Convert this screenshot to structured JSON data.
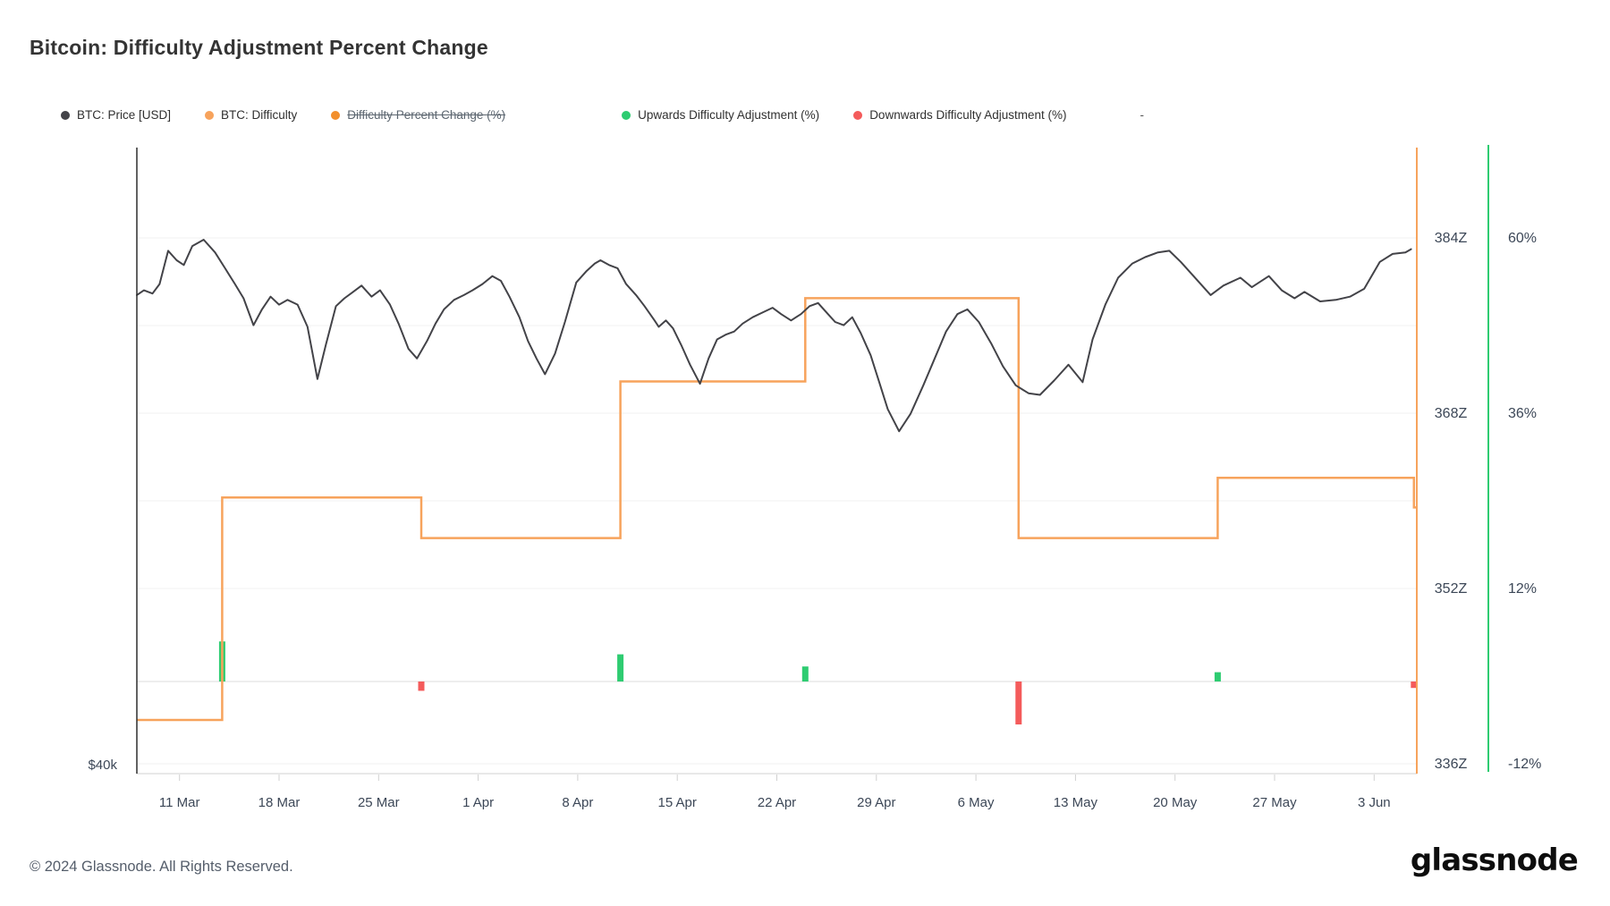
{
  "header": {
    "title": "Bitcoin: Difficulty Adjustment Percent Change"
  },
  "legend": {
    "items": [
      {
        "label": "BTC: Price [USD]",
        "color": "#434348",
        "disabled": false
      },
      {
        "label": "BTC: Difficulty",
        "color": "#f7a35c",
        "disabled": false
      },
      {
        "label": "Difficulty Percent Change (%)",
        "color": "#f28f2d",
        "disabled": true
      },
      {
        "label": "Upwards Difficulty Adjustment (%)",
        "color": "#2ecc71",
        "disabled": false
      },
      {
        "label": "Downwards Difficulty Adjustment (%)",
        "color": "#f45b5b",
        "disabled": false
      },
      {
        "label": "-",
        "color": null,
        "disabled": false
      }
    ]
  },
  "axes": {
    "price_axis_label": "$40k",
    "difficulty_tick_values": [
      384,
      368,
      352,
      336
    ],
    "difficulty_tick_suffix": "Z",
    "percent_tick_values": [
      60,
      36,
      12,
      -12
    ],
    "percent_tick_suffix": "%",
    "x_ticks": [
      {
        "day": 3,
        "label": "11 Mar"
      },
      {
        "day": 10,
        "label": "18 Mar"
      },
      {
        "day": 17,
        "label": "25 Mar"
      },
      {
        "day": 24,
        "label": "1 Apr"
      },
      {
        "day": 31,
        "label": "8 Apr"
      },
      {
        "day": 38,
        "label": "15 Apr"
      },
      {
        "day": 45,
        "label": "22 Apr"
      },
      {
        "day": 52,
        "label": "29 Apr"
      },
      {
        "day": 59,
        "label": "6 May"
      },
      {
        "day": 66,
        "label": "13 May"
      },
      {
        "day": 73,
        "label": "20 May"
      },
      {
        "day": 80,
        "label": "27 May"
      },
      {
        "day": 87,
        "label": "3 Jun"
      }
    ]
  },
  "chart_data": {
    "type": "mixed",
    "title": "Bitcoin: Difficulty Adjustment Percent Change",
    "x_unit": "days since 8 Mar 2024",
    "x_range_days": [
      0,
      90
    ],
    "legend_position": "top",
    "grid": "horizontal-faint",
    "y_axes": {
      "price_usd": {
        "visible_label": "$40k",
        "scale": "auto"
      },
      "difficulty_z": {
        "ticks": [
          "384Z",
          "368Z",
          "352Z",
          "336Z"
        ]
      },
      "percent": {
        "ticks": [
          "60%",
          "36%",
          "12%",
          "-12%"
        ],
        "zero_baseline": true
      }
    },
    "series": [
      {
        "name": "BTC: Price [USD]",
        "type": "line",
        "color": "#434348",
        "unit": "USD",
        "points": [
          [
            0,
            69600
          ],
          [
            0.5,
            69900
          ],
          [
            1.1,
            69700
          ],
          [
            1.6,
            70300
          ],
          [
            2.2,
            72400
          ],
          [
            2.8,
            71800
          ],
          [
            3.3,
            71500
          ],
          [
            3.9,
            72700
          ],
          [
            4.7,
            73100
          ],
          [
            5.5,
            72300
          ],
          [
            6.2,
            71300
          ],
          [
            6.9,
            70300
          ],
          [
            7.5,
            69400
          ],
          [
            8.2,
            67700
          ],
          [
            8.8,
            68700
          ],
          [
            9.4,
            69500
          ],
          [
            10,
            69000
          ],
          [
            10.6,
            69300
          ],
          [
            11.3,
            69000
          ],
          [
            12,
            67600
          ],
          [
            12.7,
            64300
          ],
          [
            13.3,
            66500
          ],
          [
            14,
            68900
          ],
          [
            14.6,
            69400
          ],
          [
            15.2,
            69800
          ],
          [
            15.8,
            70200
          ],
          [
            16.5,
            69500
          ],
          [
            17.1,
            69900
          ],
          [
            17.8,
            69000
          ],
          [
            18.4,
            67800
          ],
          [
            19.1,
            66200
          ],
          [
            19.7,
            65600
          ],
          [
            20.4,
            66700
          ],
          [
            21,
            67800
          ],
          [
            21.6,
            68700
          ],
          [
            22.3,
            69300
          ],
          [
            23,
            69600
          ],
          [
            23.6,
            69900
          ],
          [
            24.3,
            70300
          ],
          [
            25,
            70800
          ],
          [
            25.6,
            70500
          ],
          [
            26.2,
            69500
          ],
          [
            26.9,
            68200
          ],
          [
            27.5,
            66700
          ],
          [
            28.1,
            65600
          ],
          [
            28.7,
            64600
          ],
          [
            29.4,
            65900
          ],
          [
            30.1,
            67900
          ],
          [
            30.9,
            70400
          ],
          [
            31.6,
            71100
          ],
          [
            32.2,
            71600
          ],
          [
            32.6,
            71800
          ],
          [
            33.2,
            71500
          ],
          [
            33.8,
            71300
          ],
          [
            34.4,
            70300
          ],
          [
            35.1,
            69600
          ],
          [
            35.7,
            68900
          ],
          [
            36.4,
            68000
          ],
          [
            36.7,
            67600
          ],
          [
            37.2,
            68000
          ],
          [
            37.7,
            67500
          ],
          [
            38.3,
            66400
          ],
          [
            38.9,
            65200
          ],
          [
            39.6,
            64000
          ],
          [
            40.2,
            65600
          ],
          [
            40.8,
            66800
          ],
          [
            41.4,
            67100
          ],
          [
            42,
            67300
          ],
          [
            42.6,
            67800
          ],
          [
            43.3,
            68200
          ],
          [
            44,
            68500
          ],
          [
            44.7,
            68800
          ],
          [
            45.3,
            68400
          ],
          [
            46,
            68000
          ],
          [
            46.7,
            68400
          ],
          [
            47.3,
            68900
          ],
          [
            47.9,
            69100
          ],
          [
            48.6,
            68400
          ],
          [
            49.1,
            67900
          ],
          [
            49.7,
            67700
          ],
          [
            50.3,
            68200
          ],
          [
            50.9,
            67200
          ],
          [
            51.6,
            65800
          ],
          [
            52.2,
            64100
          ],
          [
            52.8,
            62400
          ],
          [
            53.6,
            61000
          ],
          [
            54.4,
            62100
          ],
          [
            55.3,
            63900
          ],
          [
            56.1,
            65600
          ],
          [
            56.9,
            67300
          ],
          [
            57.7,
            68400
          ],
          [
            58.4,
            68700
          ],
          [
            59.2,
            67900
          ],
          [
            60.1,
            66500
          ],
          [
            60.9,
            65100
          ],
          [
            61.8,
            63900
          ],
          [
            62.7,
            63400
          ],
          [
            63.5,
            63300
          ],
          [
            64.5,
            64200
          ],
          [
            65.5,
            65200
          ],
          [
            66.5,
            64100
          ],
          [
            67.2,
            66800
          ],
          [
            68.1,
            69000
          ],
          [
            69,
            70700
          ],
          [
            70,
            71600
          ],
          [
            70.9,
            72000
          ],
          [
            71.8,
            72300
          ],
          [
            72.6,
            72400
          ],
          [
            73.4,
            71700
          ],
          [
            74.3,
            70800
          ],
          [
            75.5,
            69600
          ],
          [
            76.4,
            70200
          ],
          [
            77.6,
            70700
          ],
          [
            78.4,
            70100
          ],
          [
            79.6,
            70800
          ],
          [
            80.5,
            69900
          ],
          [
            81.4,
            69400
          ],
          [
            82.1,
            69800
          ],
          [
            83.2,
            69200
          ],
          [
            84.3,
            69300
          ],
          [
            85.3,
            69500
          ],
          [
            86.3,
            70000
          ],
          [
            87.4,
            71700
          ],
          [
            88.3,
            72200
          ],
          [
            89.2,
            72300
          ],
          [
            89.6,
            72500
          ]
        ]
      },
      {
        "name": "BTC: Difficulty",
        "type": "step-line",
        "color": "#f7a35c",
        "unit": "Z",
        "steps": [
          {
            "from_day": 0,
            "to_day": 6,
            "value_z": 340.0
          },
          {
            "from_day": 6,
            "to_day": 20,
            "value_z": 360.3
          },
          {
            "from_day": 20,
            "to_day": 34,
            "value_z": 356.6
          },
          {
            "from_day": 34,
            "to_day": 47,
            "value_z": 370.9
          },
          {
            "from_day": 47,
            "to_day": 62,
            "value_z": 378.5
          },
          {
            "from_day": 62,
            "to_day": 76,
            "value_z": 356.6
          },
          {
            "from_day": 76,
            "to_day": 89.8,
            "value_z": 362.1
          },
          {
            "from_day": 89.8,
            "to_day": 90,
            "value_z": 359.4
          }
        ]
      },
      {
        "name": "Upwards Difficulty Adjustment (%)",
        "type": "bar",
        "color": "#2ecc71",
        "unit": "%",
        "points": [
          {
            "day": 6,
            "date": "14 Mar",
            "pct": 5.6
          },
          {
            "day": 34,
            "date": "11 Apr",
            "pct": 3.8
          },
          {
            "day": 47,
            "date": "24 Apr",
            "pct": 2.1
          },
          {
            "day": 76,
            "date": "23 May",
            "pct": 1.3
          }
        ]
      },
      {
        "name": "Downwards Difficulty Adjustment (%)",
        "type": "bar",
        "color": "#f45b5b",
        "unit": "%",
        "points": [
          {
            "day": 20,
            "date": "28 Mar",
            "pct": -1.3
          },
          {
            "day": 62,
            "date": "9 May",
            "pct": -6.0
          },
          {
            "day": 89.8,
            "date": "5 Jun",
            "pct": -0.9
          }
        ]
      }
    ]
  },
  "footer": {
    "copyright": "© 2024 Glassnode. All Rights Reserved.",
    "logo_text": "glassnode"
  }
}
